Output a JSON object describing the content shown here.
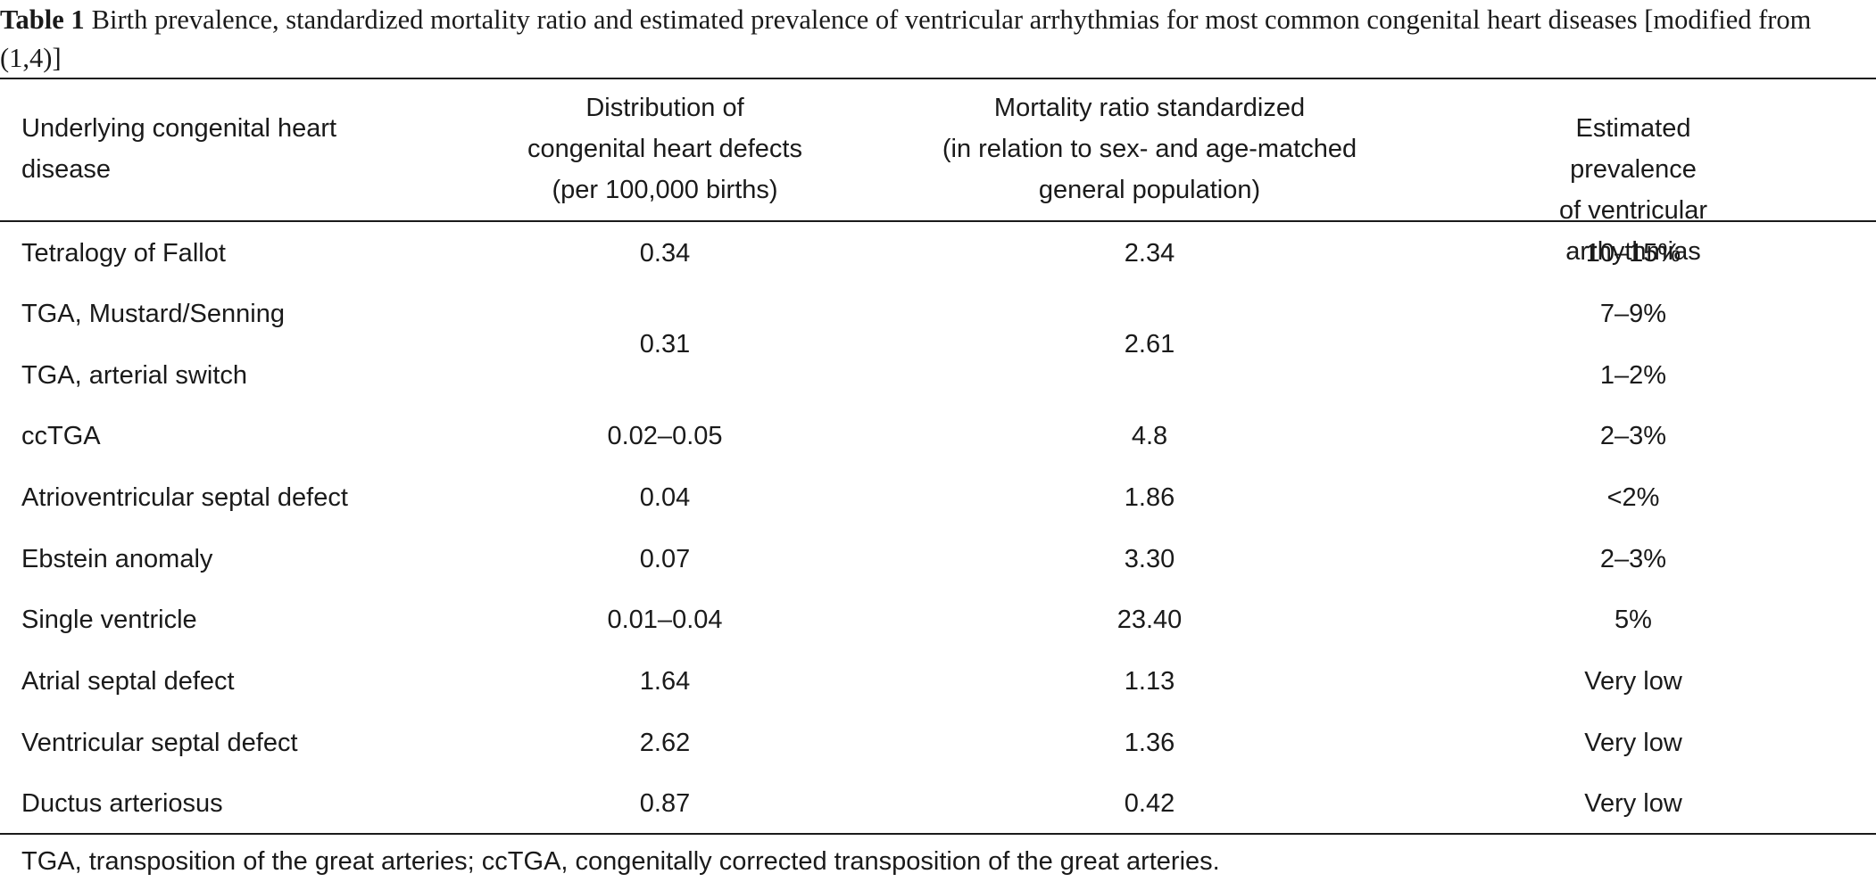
{
  "caption": {
    "label": "Table 1",
    "text": "Birth prevalence, standardized mortality ratio and estimated prevalence of ventricular arrhythmias for most common congenital heart diseases [modified from (1,4)]"
  },
  "table": {
    "headers": [
      "Underlying congenital heart\ndisease",
      "Distribution of\ncongenital heart defects\n(per 100,000 births)",
      "Mortality ratio standardized\n(in relation to sex- and age-matched\ngeneral population)",
      "Estimated prevalence\nof ventricular arrhythmias"
    ],
    "rows": [
      {
        "disease": "Tetralogy of Fallot",
        "distribution": "0.34",
        "mortality": "2.34",
        "prevalence": "10–15%"
      },
      {
        "disease": "TGA, Mustard/Senning",
        "distribution": "0.31",
        "mortality": "2.61",
        "prevalence": "7–9%"
      },
      {
        "disease": "TGA, arterial switch",
        "distribution": "",
        "mortality": "",
        "prevalence": "1–2%"
      },
      {
        "disease": "ccTGA",
        "distribution": "0.02–0.05",
        "mortality": "4.8",
        "prevalence": "2–3%"
      },
      {
        "disease": "Atrioventricular septal defect",
        "distribution": "0.04",
        "mortality": "1.86",
        "prevalence": "<2%"
      },
      {
        "disease": "Ebstein anomaly",
        "distribution": "0.07",
        "mortality": "3.30",
        "prevalence": "2–3%"
      },
      {
        "disease": "Single ventricle",
        "distribution": "0.01–0.04",
        "mortality": "23.40",
        "prevalence": "5%"
      },
      {
        "disease": "Atrial septal defect",
        "distribution": "1.64",
        "mortality": "1.13",
        "prevalence": "Very low"
      },
      {
        "disease": "Ventricular septal defect",
        "distribution": "2.62",
        "mortality": "1.36",
        "prevalence": "Very low"
      },
      {
        "disease": "Ductus arteriosus",
        "distribution": "0.87",
        "mortality": "0.42",
        "prevalence": "Very low"
      }
    ]
  },
  "footnote": "TGA, transposition of the great arteries; ccTGA, congenitally corrected transposition of the great arteries."
}
